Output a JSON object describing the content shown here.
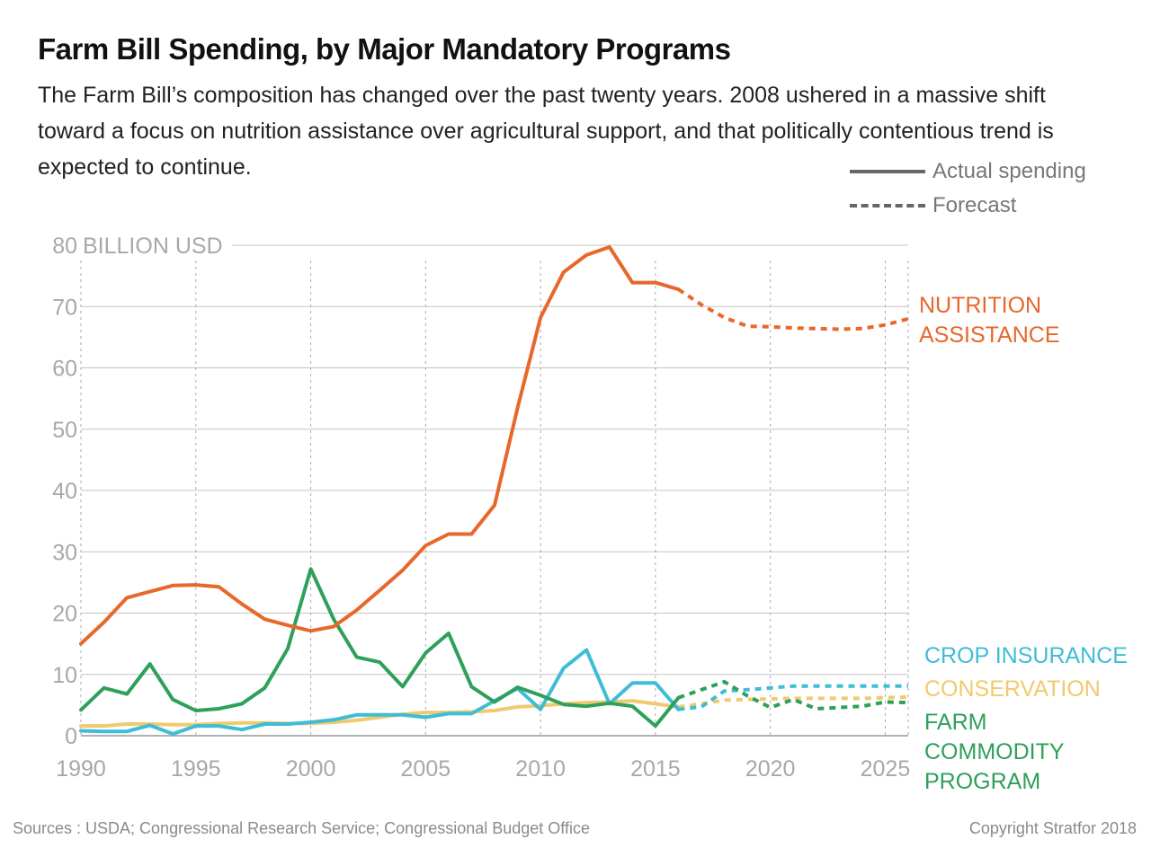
{
  "header": {
    "title": "Farm Bill Spending, by Major Mandatory Programs",
    "subtitle": "The Farm Bill’s composition has changed over the past twenty years. 2008 ushered in a massive shift toward a focus on nutrition assistance over agricultural support, and that politically contentious trend is expected to continue."
  },
  "legend": {
    "actual": "Actual spending",
    "forecast": "Forecast"
  },
  "footer": {
    "sources": "Sources : USDA; Congressional Research Service; Congressional Budget Office",
    "copyright": "Copyright Stratfor 2018"
  },
  "chart_data": {
    "type": "line",
    "ylabel": "BILLION USD",
    "ylim": [
      0,
      80
    ],
    "xlim": [
      1990,
      2026
    ],
    "y_ticks": [
      0,
      10,
      20,
      30,
      40,
      50,
      60,
      70,
      80
    ],
    "x_ticks": [
      1990,
      1995,
      2000,
      2005,
      2010,
      2015,
      2020,
      2025
    ],
    "series": [
      {
        "name": "NUTRITION ASSISTANCE",
        "color": "#e8672a",
        "label_lines": [
          "NUTRITION",
          "ASSISTANCE"
        ],
        "actual": [
          [
            1990,
            15
          ],
          [
            1991,
            18.5
          ],
          [
            1992,
            22.5
          ],
          [
            1993,
            23.5
          ],
          [
            1994,
            24.5
          ],
          [
            1995,
            24.6
          ],
          [
            1996,
            24.3
          ],
          [
            1997,
            21.5
          ],
          [
            1998,
            19
          ],
          [
            1999,
            18
          ],
          [
            2000,
            17.1
          ],
          [
            2001,
            17.8
          ],
          [
            2002,
            20.5
          ],
          [
            2003,
            23.7
          ],
          [
            2004,
            27
          ],
          [
            2005,
            31
          ],
          [
            2006,
            32.9
          ],
          [
            2007,
            32.9
          ],
          [
            2008,
            37.6
          ],
          [
            2009,
            53.5
          ],
          [
            2010,
            68.2
          ],
          [
            2011,
            75.6
          ],
          [
            2012,
            78.4
          ],
          [
            2013,
            79.7
          ],
          [
            2014,
            73.9
          ],
          [
            2015,
            73.9
          ],
          [
            2016,
            72.8
          ]
        ],
        "forecast": [
          [
            2016,
            72.8
          ],
          [
            2017,
            70.3
          ],
          [
            2018,
            68.2
          ],
          [
            2019,
            66.8
          ],
          [
            2020,
            66.7
          ],
          [
            2021,
            66.5
          ],
          [
            2022,
            66.4
          ],
          [
            2023,
            66.3
          ],
          [
            2024,
            66.4
          ],
          [
            2025,
            67
          ],
          [
            2026,
            68
          ]
        ]
      },
      {
        "name": "CROP INSURANCE",
        "color": "#3fbcd6",
        "label_lines": [
          "CROP INSURANCE"
        ],
        "actual": [
          [
            1990,
            0.8
          ],
          [
            1991,
            0.7
          ],
          [
            1992,
            0.7
          ],
          [
            1993,
            1.7
          ],
          [
            1994,
            0.3
          ],
          [
            1995,
            1.6
          ],
          [
            1996,
            1.6
          ],
          [
            1997,
            1
          ],
          [
            1998,
            1.9
          ],
          [
            1999,
            1.9
          ],
          [
            2000,
            2.2
          ],
          [
            2001,
            2.6
          ],
          [
            2002,
            3.4
          ],
          [
            2003,
            3.4
          ],
          [
            2004,
            3.4
          ],
          [
            2005,
            3
          ],
          [
            2006,
            3.6
          ],
          [
            2007,
            3.6
          ],
          [
            2008,
            5.7
          ],
          [
            2009,
            7.7
          ],
          [
            2010,
            4.3
          ],
          [
            2011,
            11
          ],
          [
            2012,
            14
          ],
          [
            2013,
            5.2
          ],
          [
            2014,
            8.6
          ],
          [
            2015,
            8.6
          ],
          [
            2016,
            4.3
          ]
        ],
        "forecast": [
          [
            2016,
            4.3
          ],
          [
            2017,
            4.7
          ],
          [
            2018,
            7.3
          ],
          [
            2019,
            7.5
          ],
          [
            2020,
            7.8
          ],
          [
            2021,
            8.1
          ],
          [
            2022,
            8.1
          ],
          [
            2023,
            8.1
          ],
          [
            2024,
            8.1
          ],
          [
            2025,
            8.1
          ],
          [
            2026,
            8.1
          ]
        ]
      },
      {
        "name": "CONSERVATION",
        "color": "#f0ca6e",
        "label_lines": [
          "CONSERVATION"
        ],
        "actual": [
          [
            1990,
            1.6
          ],
          [
            1991,
            1.6
          ],
          [
            1992,
            1.9
          ],
          [
            1993,
            1.9
          ],
          [
            1994,
            1.8
          ],
          [
            1995,
            1.8
          ],
          [
            1996,
            2
          ],
          [
            1997,
            2.1
          ],
          [
            1998,
            2.1
          ],
          [
            1999,
            2
          ],
          [
            2000,
            2
          ],
          [
            2001,
            2.2
          ],
          [
            2002,
            2.5
          ],
          [
            2003,
            3
          ],
          [
            2004,
            3.5
          ],
          [
            2005,
            3.8
          ],
          [
            2006,
            3.8
          ],
          [
            2007,
            3.9
          ],
          [
            2008,
            4.1
          ],
          [
            2009,
            4.7
          ],
          [
            2010,
            4.9
          ],
          [
            2011,
            5.2
          ],
          [
            2012,
            5.4
          ],
          [
            2013,
            5.5
          ],
          [
            2014,
            5.7
          ],
          [
            2015,
            5.2
          ],
          [
            2016,
            4.7
          ]
        ],
        "forecast": [
          [
            2016,
            4.7
          ],
          [
            2017,
            5.2
          ],
          [
            2018,
            5.8
          ],
          [
            2019,
            5.9
          ],
          [
            2020,
            6
          ],
          [
            2021,
            6.1
          ],
          [
            2022,
            6.1
          ],
          [
            2023,
            6.1
          ],
          [
            2024,
            6.1
          ],
          [
            2025,
            6.2
          ],
          [
            2026,
            6.3
          ]
        ]
      },
      {
        "name": "FARM COMMODITY PROGRAM",
        "color": "#2ea05a",
        "label_lines": [
          "FARM",
          "COMMODITY",
          "PROGRAM"
        ],
        "actual": [
          [
            1990,
            4.2
          ],
          [
            1991,
            7.8
          ],
          [
            1992,
            6.8
          ],
          [
            1993,
            11.7
          ],
          [
            1994,
            5.9
          ],
          [
            1995,
            4.1
          ],
          [
            1996,
            4.4
          ],
          [
            1997,
            5.2
          ],
          [
            1998,
            7.8
          ],
          [
            1999,
            14.2
          ],
          [
            2000,
            27.2
          ],
          [
            2001,
            19
          ],
          [
            2002,
            12.8
          ],
          [
            2003,
            12
          ],
          [
            2004,
            8
          ],
          [
            2005,
            13.5
          ],
          [
            2006,
            16.7
          ],
          [
            2007,
            8
          ],
          [
            2008,
            5.5
          ],
          [
            2009,
            7.9
          ],
          [
            2010,
            6.6
          ],
          [
            2011,
            5.1
          ],
          [
            2012,
            4.8
          ],
          [
            2013,
            5.3
          ],
          [
            2014,
            4.8
          ],
          [
            2015,
            1.6
          ],
          [
            2016,
            6.2
          ]
        ],
        "forecast": [
          [
            2016,
            6.2
          ],
          [
            2017,
            7.5
          ],
          [
            2018,
            8.8
          ],
          [
            2019,
            6.5
          ],
          [
            2020,
            4.6
          ],
          [
            2021,
            5.9
          ],
          [
            2022,
            4.4
          ],
          [
            2023,
            4.6
          ],
          [
            2024,
            4.8
          ],
          [
            2025,
            5.5
          ],
          [
            2026,
            5.4
          ]
        ]
      }
    ]
  }
}
